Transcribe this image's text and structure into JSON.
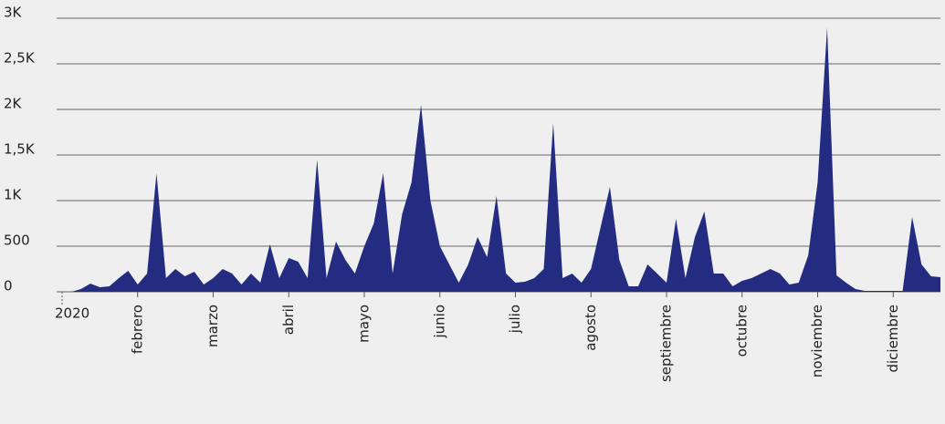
{
  "chart_data": {
    "type": "area",
    "categories": [
      "2020",
      null,
      null,
      null,
      null,
      null,
      null,
      null,
      "febrero",
      null,
      null,
      null,
      null,
      null,
      null,
      null,
      "marzo",
      null,
      null,
      null,
      null,
      null,
      null,
      null,
      "abril",
      null,
      null,
      null,
      null,
      null,
      null,
      null,
      "mayo",
      null,
      null,
      null,
      null,
      null,
      null,
      null,
      "junio",
      null,
      null,
      null,
      null,
      null,
      null,
      null,
      "julio",
      null,
      null,
      null,
      null,
      null,
      null,
      null,
      "agosto",
      null,
      null,
      null,
      null,
      null,
      null,
      null,
      "septiembre",
      null,
      null,
      null,
      null,
      null,
      null,
      null,
      "octubre",
      null,
      null,
      null,
      null,
      null,
      null,
      null,
      "noviembre",
      null,
      null,
      null,
      null,
      null,
      null,
      null,
      "diciembre",
      null,
      null,
      null,
      null,
      null
    ],
    "values": [
      0,
      0,
      30,
      90,
      50,
      60,
      150,
      230,
      80,
      200,
      1300,
      150,
      250,
      170,
      220,
      80,
      150,
      250,
      200,
      80,
      200,
      100,
      520,
      150,
      370,
      330,
      150,
      1450,
      150,
      550,
      350,
      200,
      500,
      750,
      1300,
      200,
      850,
      1200,
      2050,
      1000,
      500,
      300,
      100,
      300,
      600,
      380,
      1050,
      200,
      100,
      110,
      150,
      250,
      1850,
      150,
      200,
      100,
      250,
      700,
      1150,
      350,
      60,
      60,
      300,
      200,
      100,
      800,
      150,
      600,
      880,
      200,
      200,
      60,
      120,
      150,
      200,
      250,
      200,
      80,
      100,
      400,
      1200,
      2900,
      180,
      100,
      30,
      10,
      10,
      10,
      10,
      10,
      820,
      300,
      170,
      160
    ],
    "color": "#232c80",
    "ylim": [
      0,
      3000
    ],
    "yticks": [
      0,
      500,
      {
        "value": 1000,
        "label": "1K"
      },
      {
        "value": 1500,
        "label": "1,5K"
      },
      {
        "value": 2000,
        "label": "2K"
      },
      {
        "value": 2500,
        "label": "2,5K"
      },
      {
        "value": 3000,
        "label": "3K"
      }
    ],
    "grid": true
  }
}
